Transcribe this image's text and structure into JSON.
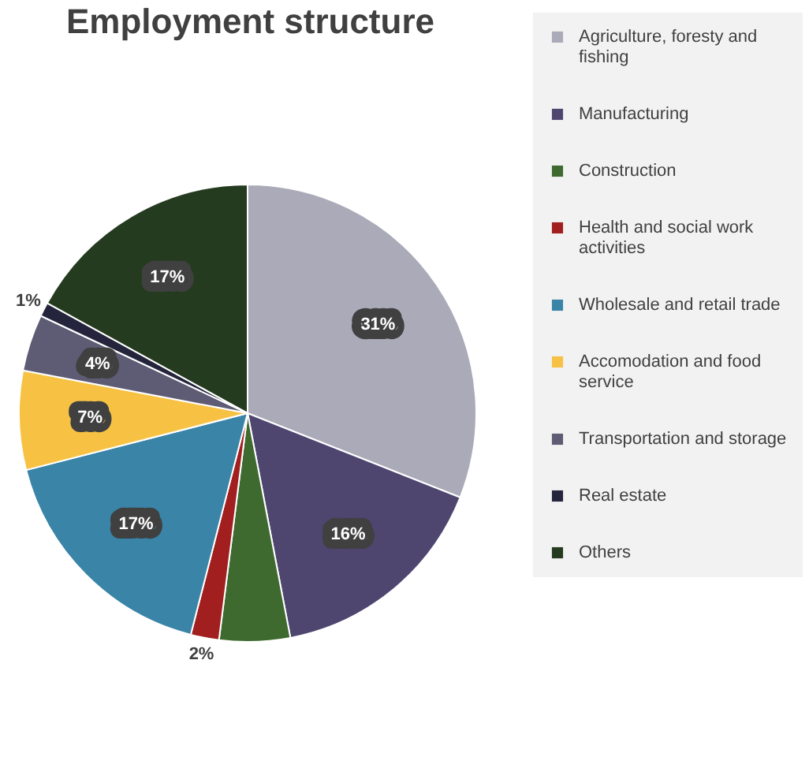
{
  "chart_data": {
    "type": "pie",
    "title": "Employment structure",
    "categories": [
      "Agriculture, foresty and fishing",
      "Manufacturing",
      "Construction",
      "Health and social work activities",
      "Wholesale and retail trade",
      "Accomodation and food service",
      "Transportation and storage",
      "Real estate",
      "Others"
    ],
    "values": [
      31,
      16,
      5,
      2,
      17,
      7,
      4,
      1,
      17
    ],
    "value_labels": [
      "31%",
      "16%",
      null,
      "2%",
      "17%",
      "7%",
      "4%",
      "1%",
      "17%"
    ],
    "colors": [
      "#aaaab9",
      "#4f4670",
      "#3e6a30",
      "#a11f1f",
      "#3a84a8",
      "#f7c244",
      "#5e5c74",
      "#24253c",
      "#253b1f"
    ],
    "legend": "right"
  }
}
